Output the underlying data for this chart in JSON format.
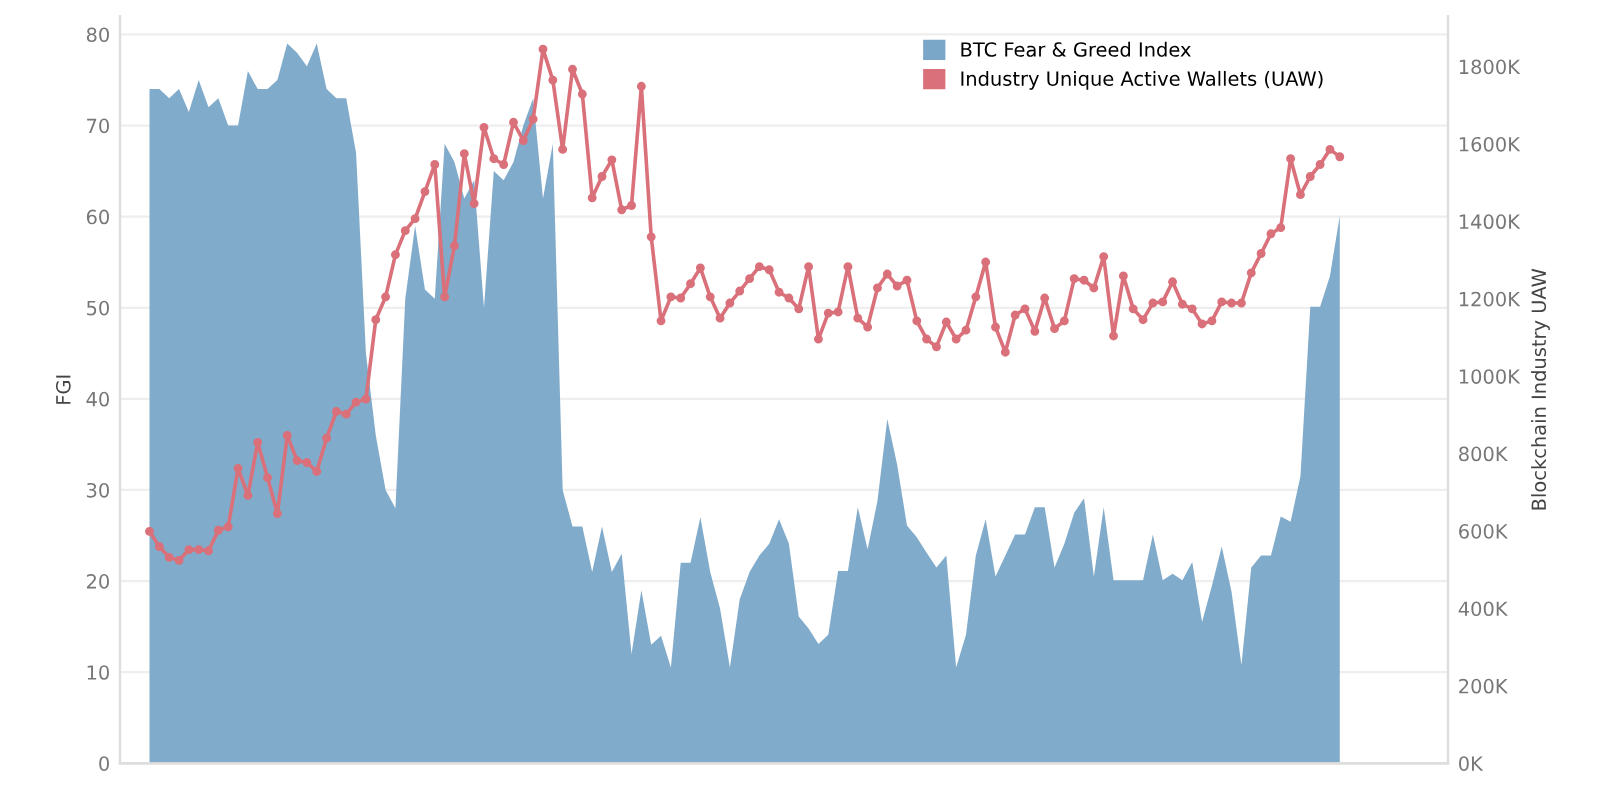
{
  "chart_data": {
    "type": "area",
    "ylabel": "FGI",
    "y2label": "Blockchain Industry UAW",
    "categories": [
      null,
      null,
      null,
      null,
      null,
      null,
      null,
      null,
      null,
      null,
      null,
      null,
      null,
      null,
      null,
      null,
      null,
      null,
      null,
      null,
      null,
      null,
      null,
      null,
      null,
      null,
      null,
      null,
      null,
      null,
      null,
      null,
      null,
      null,
      null,
      null,
      null,
      null,
      null,
      null,
      null,
      null,
      null,
      null,
      null,
      null,
      null,
      null,
      null,
      null,
      null,
      null,
      null,
      null,
      null,
      null,
      null,
      null,
      null,
      null,
      null,
      null,
      null,
      null,
      null,
      null,
      null,
      null,
      null,
      null,
      null,
      null,
      null,
      null,
      null,
      null,
      null,
      null,
      null,
      null,
      null,
      null,
      null,
      null,
      null,
      null,
      null,
      null,
      null,
      null,
      null,
      null,
      null,
      null,
      null,
      null,
      null,
      null,
      null,
      null,
      null,
      null,
      null,
      null,
      null,
      null,
      null,
      null,
      null,
      null,
      null,
      null,
      null,
      null,
      null,
      null,
      null,
      null,
      null,
      null,
      null,
      null
    ],
    "series": [
      {
        "name": "BTC Fear & Greed Index",
        "color": "#7aa6c8",
        "values": [
          74,
          74,
          73,
          74,
          71.5,
          75,
          72,
          73,
          70,
          70,
          76,
          74,
          74,
          75,
          79,
          78,
          76.5,
          79,
          74,
          73,
          73,
          67,
          45,
          36,
          30,
          28,
          51,
          59,
          52,
          51,
          68,
          66,
          62,
          64,
          50,
          65,
          64,
          66,
          70,
          73,
          62,
          68,
          30,
          26,
          26,
          21,
          26,
          21,
          23,
          12,
          19,
          13,
          14,
          10.5,
          22,
          22,
          27,
          21,
          17,
          10.5,
          18,
          21,
          22.8,
          24.1,
          26.8,
          24.1,
          16.1,
          14.8,
          13.1,
          14.1,
          21.1,
          21.1,
          28.1,
          23.5,
          28.8,
          37.8,
          32.8,
          26.1,
          24.8,
          23.1,
          21.5,
          22.8,
          10.5,
          14.1,
          22.8,
          26.8,
          20.5,
          22.8,
          25.1,
          25.1,
          28.1,
          28.1,
          21.5,
          24.1,
          27.5,
          29.1,
          20.5,
          28.1,
          20.1,
          20.1,
          20.1,
          20.1,
          25.1,
          20.1,
          20.8,
          20.1,
          22.1,
          15.5,
          19.5,
          23.8,
          18.8,
          10.8,
          21.5,
          22.8,
          22.8,
          27.1,
          26.5,
          31.5,
          50.1,
          50.1,
          53.5,
          60.1
        ]
      },
      {
        "name": "Industry Unique Active Wallets (UAW)",
        "type": "line",
        "marker": "circle",
        "axis": "y2",
        "color": "#d9707a",
        "values": [
          599000,
          560000,
          532000,
          524000,
          552000,
          552000,
          549000,
          602000,
          611000,
          762000,
          692000,
          829000,
          738000,
          645000,
          847000,
          782000,
          777000,
          754000,
          840000,
          909000,
          902000,
          933000,
          941000,
          1146000,
          1205000,
          1314000,
          1376000,
          1407000,
          1477000,
          1547000,
          1205000,
          1337000,
          1575000,
          1446000,
          1643000,
          1562000,
          1547000,
          1656000,
          1609000,
          1664000,
          1845000,
          1765000,
          1586000,
          1793000,
          1729000,
          1461000,
          1516000,
          1559000,
          1430000,
          1441000,
          1749000,
          1360000,
          1143000,
          1205000,
          1202000,
          1239000,
          1280000,
          1205000,
          1150000,
          1189000,
          1220000,
          1252000,
          1283000,
          1275000,
          1217000,
          1202000,
          1174000,
          1283000,
          1096000,
          1163000,
          1166000,
          1283000,
          1150000,
          1127000,
          1228000,
          1264000,
          1233000,
          1248000,
          1143000,
          1096000,
          1076000,
          1140000,
          1096000,
          1119000,
          1205000,
          1295000,
          1127000,
          1062000,
          1158000,
          1174000,
          1116000,
          1202000,
          1123000,
          1143000,
          1252000,
          1248000,
          1228000,
          1309000,
          1104000,
          1259000,
          1174000,
          1146000,
          1189000,
          1192000,
          1244000,
          1186000,
          1174000,
          1135000,
          1143000,
          1192000,
          1189000,
          1189000,
          1267000,
          1317000,
          1368000,
          1384000,
          1562000,
          1469000,
          1516000,
          1547000,
          1586000,
          1567000
        ]
      }
    ],
    "ylim": [
      0,
      82
    ],
    "yticks": [
      0,
      10,
      20,
      30,
      40,
      50,
      60,
      70,
      80
    ],
    "y2lim": [
      0,
      1930000
    ],
    "y2ticks": [
      {
        "value": 0,
        "label": "0K"
      },
      {
        "value": 200000,
        "label": "200K"
      },
      {
        "value": 400000,
        "label": "400K"
      },
      {
        "value": 600000,
        "label": "600K"
      },
      {
        "value": 800000,
        "label": "800K"
      },
      {
        "value": 1000000,
        "label": "1000K"
      },
      {
        "value": 1200000,
        "label": "1200K"
      },
      {
        "value": 1400000,
        "label": "1400K"
      },
      {
        "value": 1600000,
        "label": "1600K"
      },
      {
        "value": 1800000,
        "label": "1800K"
      }
    ],
    "grid": "y",
    "legend": "top right",
    "line_style": "solid"
  }
}
